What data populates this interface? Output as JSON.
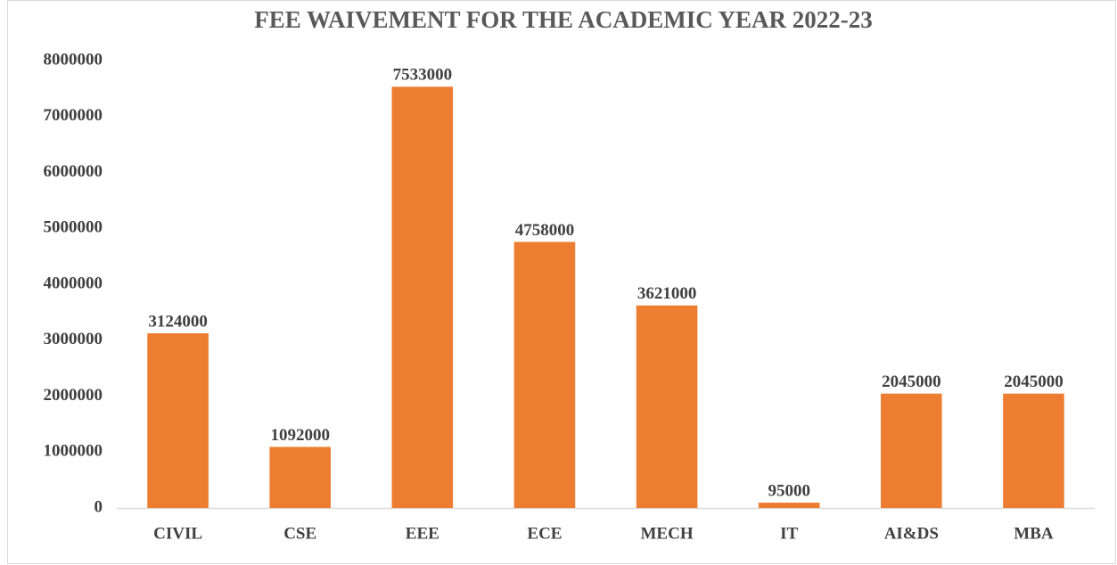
{
  "chart_data": {
    "type": "bar",
    "title": "FEE WAIVEMENT FOR THE ACADEMIC YEAR 2022-23",
    "categories": [
      "CIVIL",
      "CSE",
      "EEE",
      "ECE",
      "MECH",
      "IT",
      "AI&DS",
      "MBA"
    ],
    "values": [
      3124000,
      1092000,
      7533000,
      4758000,
      3621000,
      95000,
      2045000,
      2045000
    ],
    "color": "#ed7d31",
    "ylim": [
      0,
      8000000
    ],
    "yticks": [
      0,
      1000000,
      2000000,
      3000000,
      4000000,
      5000000,
      6000000,
      7000000,
      8000000
    ],
    "grid": false
  }
}
